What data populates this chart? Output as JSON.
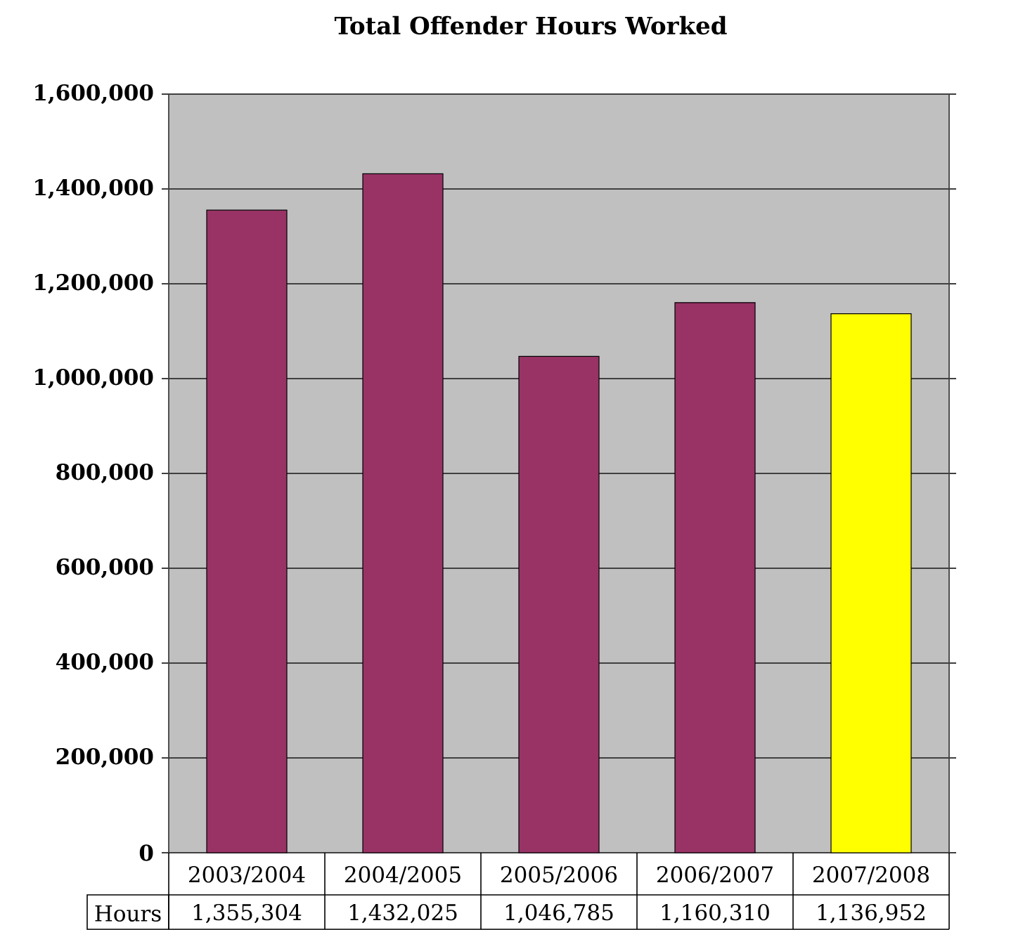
{
  "chart_data": {
    "type": "bar",
    "title": "Total Offender Hours Worked",
    "categories": [
      "2003/2004",
      "2004/2005",
      "2005/2006",
      "2006/2007",
      "2007/2008"
    ],
    "series": [
      {
        "name": "Hours",
        "colors": [
          "#993366",
          "#993366",
          "#993366",
          "#993366",
          "#ffff00"
        ],
        "values": [
          1355304,
          1432025,
          1046785,
          1160310,
          1136952
        ],
        "value_labels": [
          "1,355,304",
          "1,432,025",
          "1,046,785",
          "1,160,310",
          "1,136,952"
        ]
      }
    ],
    "ylim": [
      0,
      1600000
    ],
    "yticks": [
      0,
      {
        "value": 200000,
        "label": "200,000"
      },
      {
        "value": 400000,
        "label": "400,000"
      },
      {
        "value": 600000,
        "label": "600,000"
      },
      {
        "value": 800000,
        "label": "800,000"
      },
      {
        "value": 1000000,
        "label": "1,000,000"
      },
      {
        "value": 1200000,
        "label": "1,200,000"
      },
      {
        "value": 1400000,
        "label": "1,400,000"
      },
      {
        "value": 1600000,
        "label": "1,600,000"
      }
    ],
    "grid": "y"
  }
}
